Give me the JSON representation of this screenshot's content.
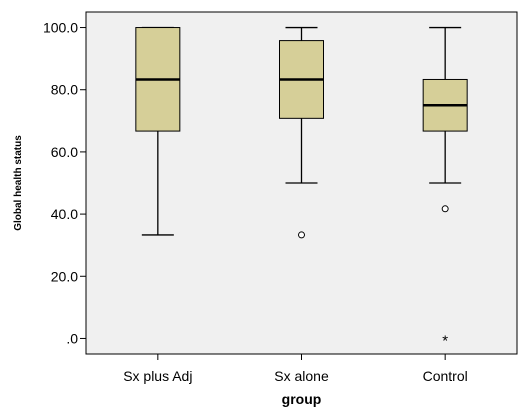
{
  "chart_data": {
    "type": "boxplot",
    "xlabel": "group",
    "ylabel": "Global health status",
    "ylim": [
      -5,
      105
    ],
    "yticks": [
      0,
      20,
      40,
      60,
      80,
      100
    ],
    "ytick_labels": [
      ".0",
      "20.0",
      "40.0",
      "60.0",
      "80.0",
      "100.0"
    ],
    "categories": [
      "Sx plus Adj",
      "Sx alone",
      "Control"
    ],
    "boxes": [
      {
        "category": "Sx plus Adj",
        "whisker_low": 33.3,
        "q1": 66.7,
        "median": 83.3,
        "q3": 100,
        "whisker_high": 100,
        "outliers": [],
        "extremes": []
      },
      {
        "category": "Sx alone",
        "whisker_low": 50,
        "q1": 70.8,
        "median": 83.3,
        "q3": 95.8,
        "whisker_high": 100,
        "outliers": [
          33.3
        ],
        "extremes": []
      },
      {
        "category": "Control",
        "whisker_low": 50,
        "q1": 66.7,
        "median": 75,
        "q3": 83.3,
        "whisker_high": 100,
        "outliers": [
          41.7
        ],
        "extremes": [
          0
        ]
      }
    ],
    "grid": false,
    "box_fill": "#d6cf98",
    "plot_background": "#f0f0f0",
    "box_stroke": "#000000"
  }
}
